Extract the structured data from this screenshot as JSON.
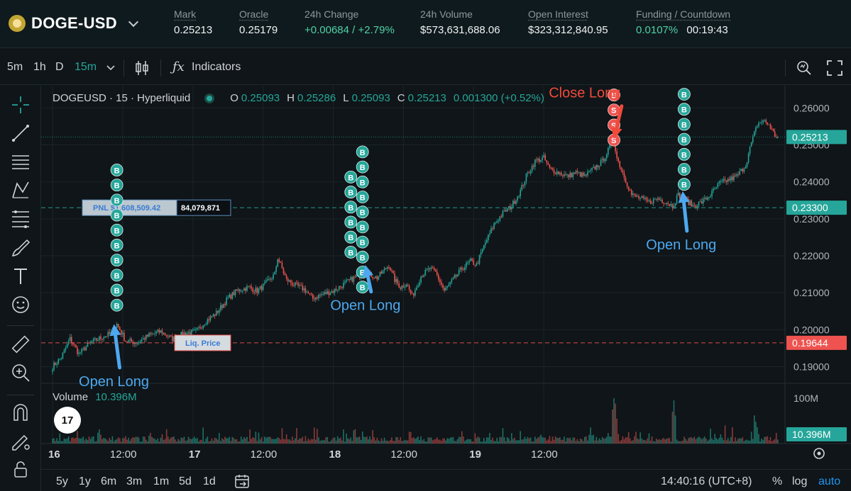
{
  "header": {
    "symbol": "DOGE-USD",
    "stats": [
      {
        "label": "Mark",
        "value": "0.25213",
        "green": false
      },
      {
        "label": "Oracle",
        "value": "0.25179",
        "green": false
      },
      {
        "label": "24h Change",
        "value": "+0.00684 / +2.79%",
        "green": true
      },
      {
        "label": "24h Volume",
        "value": "$573,631,688.06",
        "green": false
      },
      {
        "label": "Open Interest",
        "value": "$323,312,840.95",
        "green": false
      },
      {
        "label": "Funding / Countdown",
        "value": "0.0107%",
        "value2": "00:19:43",
        "green": true
      }
    ]
  },
  "toolbar": {
    "intervals": [
      "5m",
      "1h",
      "D",
      "15m"
    ],
    "active_interval": "15m",
    "indicators_label": "Indicators"
  },
  "legend": {
    "title": "DOGEUSD · 15 · Hyperliquid",
    "o_label": "O",
    "o": "0.25093",
    "h_label": "H",
    "h": "0.25286",
    "l_label": "L",
    "l": "0.25093",
    "c_label": "C",
    "c": "0.25213",
    "change": "0.001300 (+0.52%)"
  },
  "volume_legend": {
    "label": "Volume",
    "value": "10.396M"
  },
  "logo_text": "17",
  "bottom": {
    "ranges": [
      "5y",
      "1y",
      "6m",
      "3m",
      "1m",
      "5d",
      "1d"
    ],
    "time": "14:40:16 (UTC+8)",
    "pct": "%",
    "log": "log",
    "auto": "auto"
  },
  "chart_data": {
    "type": "candlestick",
    "price_axis": {
      "ticks": [
        "0.26000",
        "0.25000",
        "0.24000",
        "0.23000",
        "0.22000",
        "0.21000",
        "0.20000",
        "0.19000"
      ],
      "values": [
        0.26,
        0.25,
        0.24,
        0.23,
        0.22,
        0.21,
        0.2,
        0.19
      ],
      "ylim": [
        0.1855,
        0.266
      ]
    },
    "volume_axis": {
      "ticks": [
        "100M"
      ],
      "values": [
        100
      ],
      "max": 125
    },
    "time_axis": {
      "ticks": [
        "16",
        "12:00",
        "17",
        "12:00",
        "18",
        "12:00",
        "19",
        "12:00"
      ],
      "bold": [
        true,
        false,
        true,
        false,
        true,
        false,
        true,
        false
      ],
      "bar_index": [
        0,
        48,
        96,
        144,
        192,
        240,
        288,
        336
      ]
    },
    "price_path": [
      [
        0,
        0.19
      ],
      [
        6,
        0.1925
      ],
      [
        12,
        0.1975
      ],
      [
        18,
        0.1935
      ],
      [
        26,
        0.1965
      ],
      [
        34,
        0.198
      ],
      [
        40,
        0.199
      ],
      [
        44,
        0.2015
      ],
      [
        50,
        0.197
      ],
      [
        58,
        0.1965
      ],
      [
        66,
        0.1985
      ],
      [
        74,
        0.1995
      ],
      [
        82,
        0.1975
      ],
      [
        90,
        0.199
      ],
      [
        98,
        0.1995
      ],
      [
        104,
        0.202
      ],
      [
        112,
        0.2045
      ],
      [
        120,
        0.2085
      ],
      [
        126,
        0.2105
      ],
      [
        134,
        0.2115
      ],
      [
        140,
        0.2105
      ],
      [
        146,
        0.2125
      ],
      [
        152,
        0.215
      ],
      [
        154,
        0.2195
      ],
      [
        160,
        0.2135
      ],
      [
        166,
        0.212
      ],
      [
        172,
        0.211
      ],
      [
        178,
        0.2085
      ],
      [
        184,
        0.2095
      ],
      [
        192,
        0.2105
      ],
      [
        200,
        0.2125
      ],
      [
        208,
        0.2145
      ],
      [
        214,
        0.2155
      ],
      [
        222,
        0.214
      ],
      [
        230,
        0.2175
      ],
      [
        234,
        0.2135
      ],
      [
        238,
        0.2115
      ],
      [
        242,
        0.2125
      ],
      [
        246,
        0.209
      ],
      [
        252,
        0.2145
      ],
      [
        258,
        0.2165
      ],
      [
        262,
        0.2155
      ],
      [
        268,
        0.2105
      ],
      [
        274,
        0.2135
      ],
      [
        280,
        0.2165
      ],
      [
        286,
        0.2185
      ],
      [
        290,
        0.2175
      ],
      [
        296,
        0.2235
      ],
      [
        302,
        0.2285
      ],
      [
        308,
        0.2315
      ],
      [
        314,
        0.2335
      ],
      [
        320,
        0.2375
      ],
      [
        324,
        0.2415
      ],
      [
        330,
        0.2455
      ],
      [
        336,
        0.2465
      ],
      [
        340,
        0.2435
      ],
      [
        346,
        0.2425
      ],
      [
        352,
        0.2415
      ],
      [
        358,
        0.2425
      ],
      [
        364,
        0.2415
      ],
      [
        370,
        0.2435
      ],
      [
        376,
        0.2455
      ],
      [
        380,
        0.2485
      ],
      [
        384,
        0.2515
      ],
      [
        386,
        0.2465
      ],
      [
        390,
        0.2425
      ],
      [
        396,
        0.2365
      ],
      [
        402,
        0.2355
      ],
      [
        408,
        0.2345
      ],
      [
        414,
        0.2355
      ],
      [
        420,
        0.2345
      ],
      [
        424,
        0.2335
      ],
      [
        428,
        0.2365
      ],
      [
        432,
        0.2355
      ],
      [
        438,
        0.2335
      ],
      [
        444,
        0.2345
      ],
      [
        450,
        0.2365
      ],
      [
        456,
        0.2395
      ],
      [
        462,
        0.2405
      ],
      [
        468,
        0.2415
      ],
      [
        474,
        0.2445
      ],
      [
        478,
        0.2505
      ],
      [
        482,
        0.2555
      ],
      [
        486,
        0.2565
      ],
      [
        490,
        0.2555
      ],
      [
        494,
        0.2525
      ],
      [
        496,
        0.25213
      ]
    ],
    "volume_highlights": [
      [
        383,
        75
      ],
      [
        384,
        100
      ],
      [
        385,
        88
      ],
      [
        386,
        55
      ],
      [
        424,
        70
      ],
      [
        425,
        95
      ],
      [
        426,
        62
      ],
      [
        460,
        40
      ],
      [
        480,
        62
      ],
      [
        481,
        48
      ],
      [
        482,
        36
      ]
    ],
    "price_lines": [
      {
        "value": 0.25213,
        "label": "0.25213",
        "kind": "last",
        "color": "#26a69a"
      },
      {
        "value": 0.233,
        "label": "0.23300",
        "kind": "entry",
        "color": "#26a69a"
      },
      {
        "value": 0.19644,
        "label": "0.19644",
        "kind": "liq",
        "color": "#ef5350"
      }
    ],
    "volume_last": "10.396M",
    "pnl_label": "PNL $1,608,509.42",
    "size_label": "84,079,871",
    "liq_label": "Liq. Price",
    "buy_marker": "B",
    "sell_marker": "S",
    "buy_columns": [
      {
        "bar": 44,
        "count": 10,
        "top_price": 0.2432
      },
      {
        "bar": 204,
        "count": 6,
        "top_price": 0.2413
      },
      {
        "bar": 212,
        "count": 10,
        "top_price": 0.2481
      },
      {
        "bar": 432,
        "count": 7,
        "top_price": 0.2637
      }
    ],
    "sell_column": {
      "bar": 384,
      "count": 4,
      "top_price": 0.2635
    },
    "annotations": [
      {
        "text": "Open Long",
        "color": "#4da8f0",
        "bar": 42,
        "price": 0.18475,
        "tip_bar": 42,
        "tip_price": 0.2015
      },
      {
        "text": "Open Long",
        "color": "#4da8f0",
        "bar": 214,
        "price": 0.2053,
        "tip_bar": 214,
        "tip_price": 0.2175
      },
      {
        "text": "Open Long",
        "color": "#4da8f0",
        "bar": 430,
        "price": 0.22175,
        "tip_bar": 431,
        "tip_price": 0.2375
      },
      {
        "text": "Close Long",
        "color": "#f04a3a",
        "bar": 364,
        "price": 0.2628,
        "tip_bar": 384,
        "tip_price": 0.2516
      }
    ]
  }
}
